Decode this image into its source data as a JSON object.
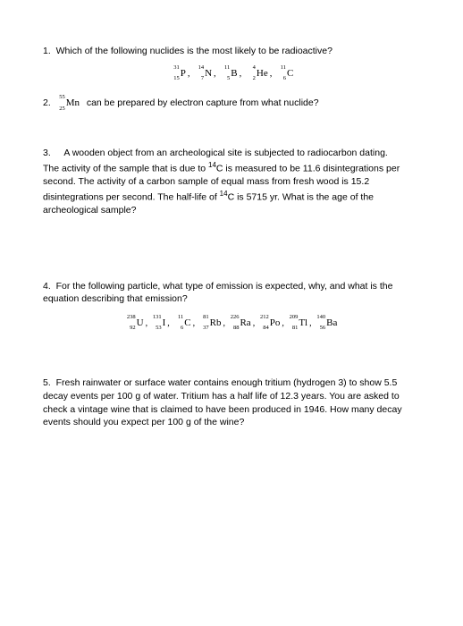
{
  "page": {
    "background_color": "#ffffff",
    "text_color": "#000000",
    "body_fontsize": 10.5
  },
  "q1": {
    "number": "1.",
    "text": "Which of the following nuclides is the most likely to be radioactive?",
    "nuclides": [
      {
        "mass": "31",
        "atomic": "15",
        "sym": "P"
      },
      {
        "mass": "14",
        "atomic": "7",
        "sym": "N"
      },
      {
        "mass": "11",
        "atomic": "5",
        "sym": "B"
      },
      {
        "mass": "4",
        "atomic": "2",
        "sym": "He"
      },
      {
        "mass": "11",
        "atomic": "6",
        "sym": "C"
      }
    ]
  },
  "q2": {
    "number": "2.",
    "nuclide": {
      "mass": "55",
      "atomic": "25",
      "sym": "Mn"
    },
    "text": "can be prepared by electron capture from what nuclide?"
  },
  "q3": {
    "number": "3.",
    "line1": "A wooden object from an archeological site is subjected to radiocarbon dating.",
    "body_a": "The activity of the sample that is due to ",
    "iso": "14",
    "iso_sym": "C",
    "body_b": " is measured to be 11.6 disintegrations per second.  The activity of a carbon sample of equal mass from fresh wood is 15.2 disintegrations per second.  The half-life of  ",
    "body_c": " is 5715 yr.  What is the age of the archeological sample?"
  },
  "q4": {
    "number": "4.",
    "text": "For the following particle, what type of emission is expected, why, and what is the equation describing that emission?",
    "nuclides": [
      {
        "mass": "238",
        "atomic": "92",
        "sym": "U"
      },
      {
        "mass": "131",
        "atomic": "53",
        "sym": "I"
      },
      {
        "mass": "11",
        "atomic": "6",
        "sym": "C"
      },
      {
        "mass": "81",
        "atomic": "37",
        "sym": "Rb"
      },
      {
        "mass": "226",
        "atomic": "88",
        "sym": "Ra"
      },
      {
        "mass": "212",
        "atomic": "84",
        "sym": "Po"
      },
      {
        "mass": "209",
        "atomic": "81",
        "sym": "Tl"
      },
      {
        "mass": "140",
        "atomic": "56",
        "sym": "Ba"
      }
    ]
  },
  "q5": {
    "number": "5.",
    "text": "Fresh rainwater or surface water contains enough tritium (hydrogen 3) to show 5.5 decay events per 100 g of water. Tritium has a half life of 12.3 years. You are asked to check a vintage wine that is claimed to have been produced in 1946.  How many decay events should you expect per 100 g of the wine?"
  }
}
